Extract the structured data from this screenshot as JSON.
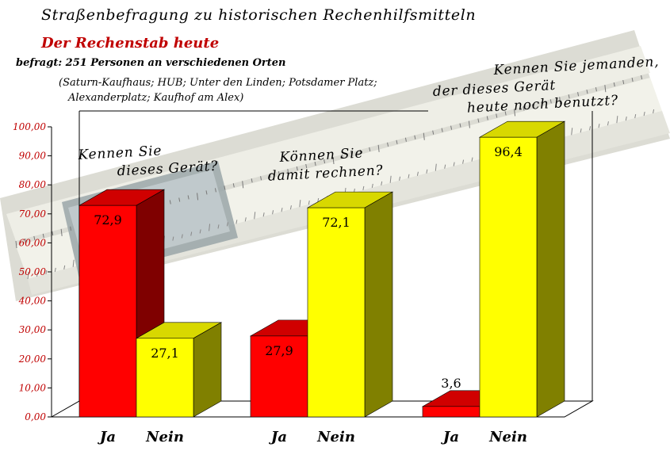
{
  "header": {
    "title": "Straßenbefragung zu historischen Rechenhilfsmitteln",
    "subtitle": "Der Rechenstab heute",
    "info_line1": "befragt: 251 Personen an verschiedenen Orten",
    "info_line2": "(Saturn-Kaufhaus; HUB; Unter den Linden; Potsdamer Platz;",
    "info_line3": "Alexanderplatz; Kaufhof am Alex)"
  },
  "questions": {
    "q1_line1": "Kennen Sie",
    "q1_line2": "dieses Gerät?",
    "q2_line1": "Können Sie",
    "q2_line2": "damit rechnen?",
    "q3_line1": "Kennen Sie jemanden,",
    "q3_line2": "der dieses Gerät",
    "q3_line3": "heute noch benutzt?"
  },
  "colors": {
    "ja": "#ff0000",
    "ja_side": "#7f0000",
    "ja_top": "#d00000",
    "nein": "#ffff00",
    "nein_side": "#808000",
    "nein_top": "#d8d800",
    "axis_labels": "#c00000"
  },
  "chart_data": {
    "type": "bar",
    "title": "Straßenbefragung zu historischen Rechenhilfsmitteln",
    "ylim": [
      0,
      100
    ],
    "yticks": [
      "0,00",
      "10,00",
      "20,00",
      "30,00",
      "40,00",
      "50,00",
      "60,00",
      "70,00",
      "80,00",
      "90,00",
      "100,00"
    ],
    "groups": [
      {
        "question": "Kennen Sie dieses Gerät?",
        "categories": [
          "Ja",
          "Nein"
        ],
        "values": [
          72.9,
          27.1
        ],
        "labels": [
          "72,9",
          "27,1"
        ]
      },
      {
        "question": "Können Sie damit rechnen?",
        "categories": [
          "Ja",
          "Nein"
        ],
        "values": [
          27.9,
          72.1
        ],
        "labels": [
          "27,9",
          "72,1"
        ]
      },
      {
        "question": "Kennen Sie jemanden, der dieses Gerät heute noch benutzt?",
        "categories": [
          "Ja",
          "Nein"
        ],
        "values": [
          3.6,
          96.4
        ],
        "labels": [
          "3,6",
          "96,4"
        ]
      }
    ]
  }
}
